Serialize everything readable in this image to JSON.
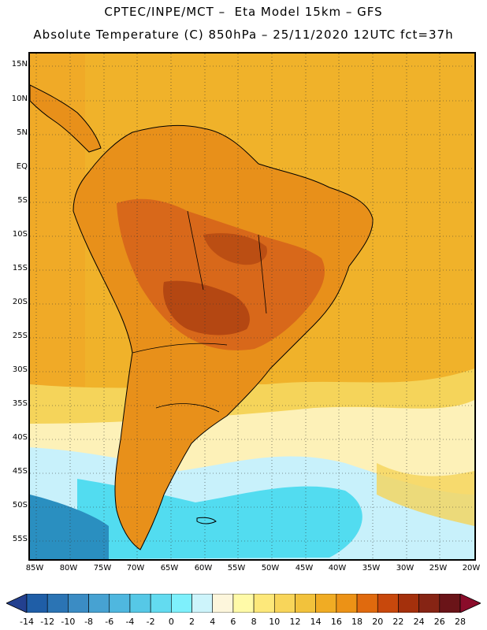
{
  "header": {
    "line1": "CPTEC/INPE/MCT –  Eta Model 15km – GFS",
    "line2": "Absolute Temperature (C) 850hPa – 25/11/2020 12UTC fct=37h"
  },
  "map": {
    "lat_labels": [
      "15N",
      "10N",
      "5N",
      "EQ",
      "5S",
      "10S",
      "15S",
      "20S",
      "25S",
      "30S",
      "35S",
      "40S",
      "45S",
      "50S",
      "55S"
    ],
    "lon_labels": [
      "85W",
      "80W",
      "75W",
      "70W",
      "65W",
      "60W",
      "55W",
      "50W",
      "45W",
      "40W",
      "35W",
      "30W",
      "25W",
      "20W"
    ],
    "field_colors": {
      "ocean_warm": "#f0b22a",
      "land_warm": "#e8901a",
      "land_hot": "#d8681a",
      "land_hottest": "#b44712",
      "mid_lat": "#f5d45a",
      "pale": "#fdf1b8",
      "cool": "#c8f1fb",
      "cold": "#52dcf0",
      "coldest": "#2a8fc0"
    },
    "grid": "dotted"
  },
  "colorbar": {
    "ticks": [
      "-14",
      "-12",
      "-10",
      "-8",
      "-6",
      "-4",
      "-2",
      "0",
      "2",
      "4",
      "6",
      "8",
      "10",
      "12",
      "14",
      "16",
      "18",
      "20",
      "22",
      "24",
      "26",
      "28"
    ],
    "colors": [
      "#23408f",
      "#1f5ea7",
      "#2b74b4",
      "#3b8cc4",
      "#47a2d2",
      "#4fb7df",
      "#56c8e6",
      "#63dbf0",
      "#7ef0fc",
      "#cdf4fb",
      "#fdf6dc",
      "#fffaa8",
      "#fde87a",
      "#f8d55a",
      "#f2c23c",
      "#f0ac24",
      "#ec9216",
      "#e06a0e",
      "#c8480c",
      "#a4300c",
      "#862414",
      "#6a1418",
      "#8a0c2a"
    ]
  }
}
